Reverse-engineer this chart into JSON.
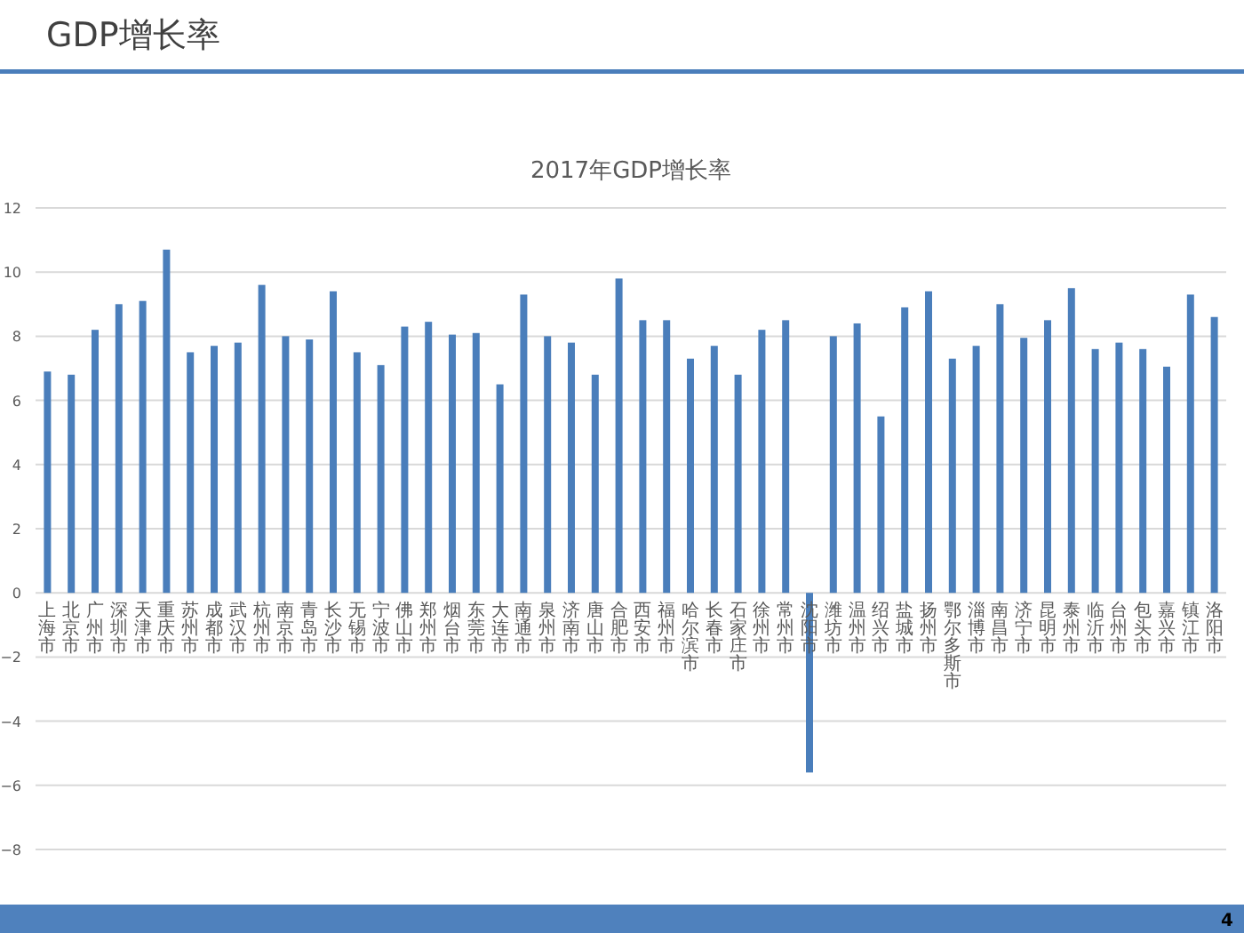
{
  "chart_data": {
    "type": "bar",
    "subtitle": "GDP增长率",
    "title": "2017年GDP增长率",
    "categories": [
      "上海市",
      "北京市",
      "广州市",
      "深圳市",
      "天津市",
      "重庆市",
      "苏州市",
      "成都市",
      "武汉市",
      "杭州市",
      "南京市",
      "青岛市",
      "长沙市",
      "无锡市",
      "宁波市",
      "佛山市",
      "郑州市",
      "烟台市",
      "东莞市",
      "大连市",
      "南通市",
      "泉州市",
      "济南市",
      "唐山市",
      "合肥市",
      "西安市",
      "福州市",
      "哈尔滨市",
      "长春市",
      "石家庄市",
      "徐州市",
      "常州市",
      "沈阳市",
      "潍坊市",
      "温州市",
      "绍兴市",
      "盐城市",
      "扬州市",
      "鄂尔多斯市",
      "淄博市",
      "南昌市",
      "济宁市",
      "昆明市",
      "泰州市",
      "临沂市",
      "台州市",
      "包头市",
      "嘉兴市",
      "镇江市",
      "洛阳市"
    ],
    "values": [
      6.9,
      6.8,
      8.2,
      9.0,
      9.1,
      10.7,
      7.5,
      7.7,
      7.8,
      9.6,
      8.0,
      7.9,
      9.4,
      7.5,
      7.1,
      8.3,
      8.45,
      8.05,
      8.1,
      6.5,
      9.3,
      8.0,
      7.8,
      6.8,
      9.8,
      8.5,
      8.5,
      7.3,
      7.7,
      6.8,
      8.2,
      8.5,
      -5.6,
      8.0,
      8.4,
      5.5,
      8.9,
      9.4,
      7.3,
      7.7,
      9.0,
      7.95,
      8.5,
      9.5,
      7.6,
      7.8,
      7.6,
      7.05,
      9.3,
      8.6
    ],
    "color": "#4a7ebb",
    "ylim": [
      -8,
      12
    ],
    "yticks": [
      -8,
      -6,
      -4,
      -2,
      0,
      2,
      4,
      6,
      8,
      10,
      12
    ],
    "grid": "y",
    "annotations": [
      "4"
    ]
  }
}
